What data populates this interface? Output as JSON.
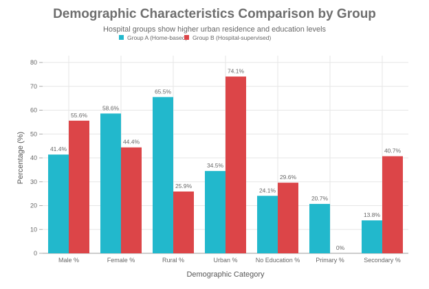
{
  "chart_data": {
    "type": "bar",
    "title": "Demographic Characteristics Comparison by Group",
    "subtitle": "Hospital groups show higher urban residence and education levels",
    "xlabel": "Demographic Category",
    "ylabel": "Percentage (%)",
    "ylim": [
      0,
      80
    ],
    "yticks": [
      "0",
      "10",
      "20",
      "30",
      "40",
      "50",
      "60",
      "70",
      "80"
    ],
    "grid": true,
    "legend_position": "top-center",
    "categories": [
      "Male %",
      "Female %",
      "Rural %",
      "Urban %",
      "No Education %",
      "Primary %",
      "Secondary %"
    ],
    "series": [
      {
        "name": "Group A (Home-based)",
        "color": "#22b8cc",
        "values": [
          41.4,
          58.6,
          65.5,
          34.5,
          24.1,
          20.7,
          13.8
        ],
        "labels": [
          "41.4%",
          "58.6%",
          "65.5%",
          "34.5%",
          "24.1%",
          "20.7%",
          "13.8%"
        ]
      },
      {
        "name": "Group B (Hospital-supervised)",
        "color": "#dc4548",
        "values": [
          55.6,
          44.4,
          25.9,
          74.1,
          29.6,
          0,
          40.7
        ],
        "labels": [
          "55.6%",
          "44.4%",
          "25.9%",
          "74.1%",
          "29.6%",
          "0%",
          "40.7%"
        ]
      }
    ]
  }
}
